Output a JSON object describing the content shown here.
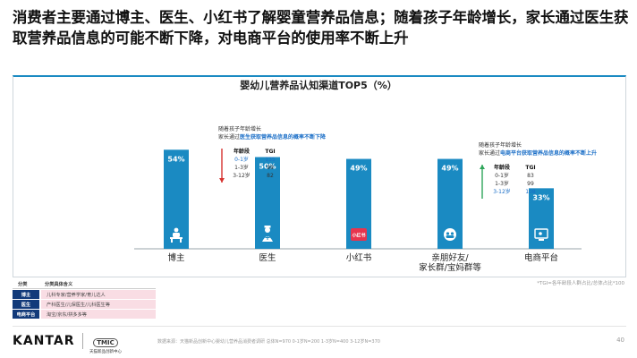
{
  "headline": "消费者主要通过博主、医生、小红书了解婴童营养品信息；随着孩子年龄增长，家长通过医生获取营养品信息的可能不断下降，对电商平台的使用率不断上升",
  "chart_data": {
    "type": "bar",
    "title": "婴幼儿营养品认知渠道TOP5（%）",
    "categories": [
      "博主",
      "医生",
      "小红书",
      "亲朋好友/家长群/宝妈群等",
      "电商平台"
    ],
    "category_lines": [
      [
        "博主"
      ],
      [
        "医生"
      ],
      [
        "小红书"
      ],
      [
        "亲朋好友/",
        "家长群/宝妈群等"
      ],
      [
        "电商平台"
      ]
    ],
    "values": [
      54,
      50,
      49,
      49,
      33
    ],
    "value_labels": [
      "54%",
      "50%",
      "49%",
      "49%",
      "33%"
    ],
    "unit": "%",
    "ylim": [
      0,
      100
    ],
    "bar_color": "#1a8ac2",
    "grid": false,
    "icons": [
      "presenter-icon",
      "doctor-icon",
      "xiaohongshu-logo-icon",
      "group-chat-icon",
      "ecommerce-screen-icon"
    ],
    "xiaohongshu_logo_text": "小红书",
    "annotations": [
      {
        "category": "医生",
        "lead": "随着孩子年龄增长",
        "line2_prefix": "家长通过",
        "line2_highlight": "医生获取营养品信息的概率不断下降",
        "trend": "down",
        "trend_color": "#d6312e",
        "table_headers": [
          "年龄段",
          "TGI"
        ],
        "rows": [
          [
            "0-1岁",
            "135"
          ],
          [
            "1-3岁",
            "99"
          ],
          [
            "3-12岁",
            "82"
          ]
        ],
        "highlight_row": 0
      },
      {
        "category": "电商平台",
        "lead": "随着孩子年龄增长",
        "line2_prefix": "家长通过",
        "line2_highlight": "电商平台获取营养品信息的概率不断上升",
        "trend": "up",
        "trend_color": "#2fa55a",
        "table_headers": [
          "年龄段",
          "TGI"
        ],
        "rows": [
          [
            "0-1岁",
            "83"
          ],
          [
            "1-3岁",
            "99"
          ],
          [
            "3-12岁",
            "108"
          ]
        ],
        "highlight_row": 2
      }
    ]
  },
  "highlight_color": "#1a6ec7",
  "definitions": {
    "header": [
      "分类",
      "分类具体含义"
    ],
    "rows": [
      {
        "k": "博主",
        "v": "儿科专家/营养学家/育儿达人"
      },
      {
        "k": "医生",
        "v": "产科医生/儿保医生/儿科医生等"
      },
      {
        "k": "电商平台",
        "v": "淘宝/京东/拼多多等"
      }
    ]
  },
  "footnote_right": "*TGI=各年龄段人群占比/总体占比*100",
  "footer": {
    "brand": "KANTAR",
    "partner_badge": "TMIC",
    "partner_name": "天猫新品创新中心",
    "source": "数据来源：天猫新品创新中心婴幼儿营养品消费者调研 总体N=970 0-1岁N=200 1-3岁N=400 3-12岁N=370",
    "page": "40"
  }
}
